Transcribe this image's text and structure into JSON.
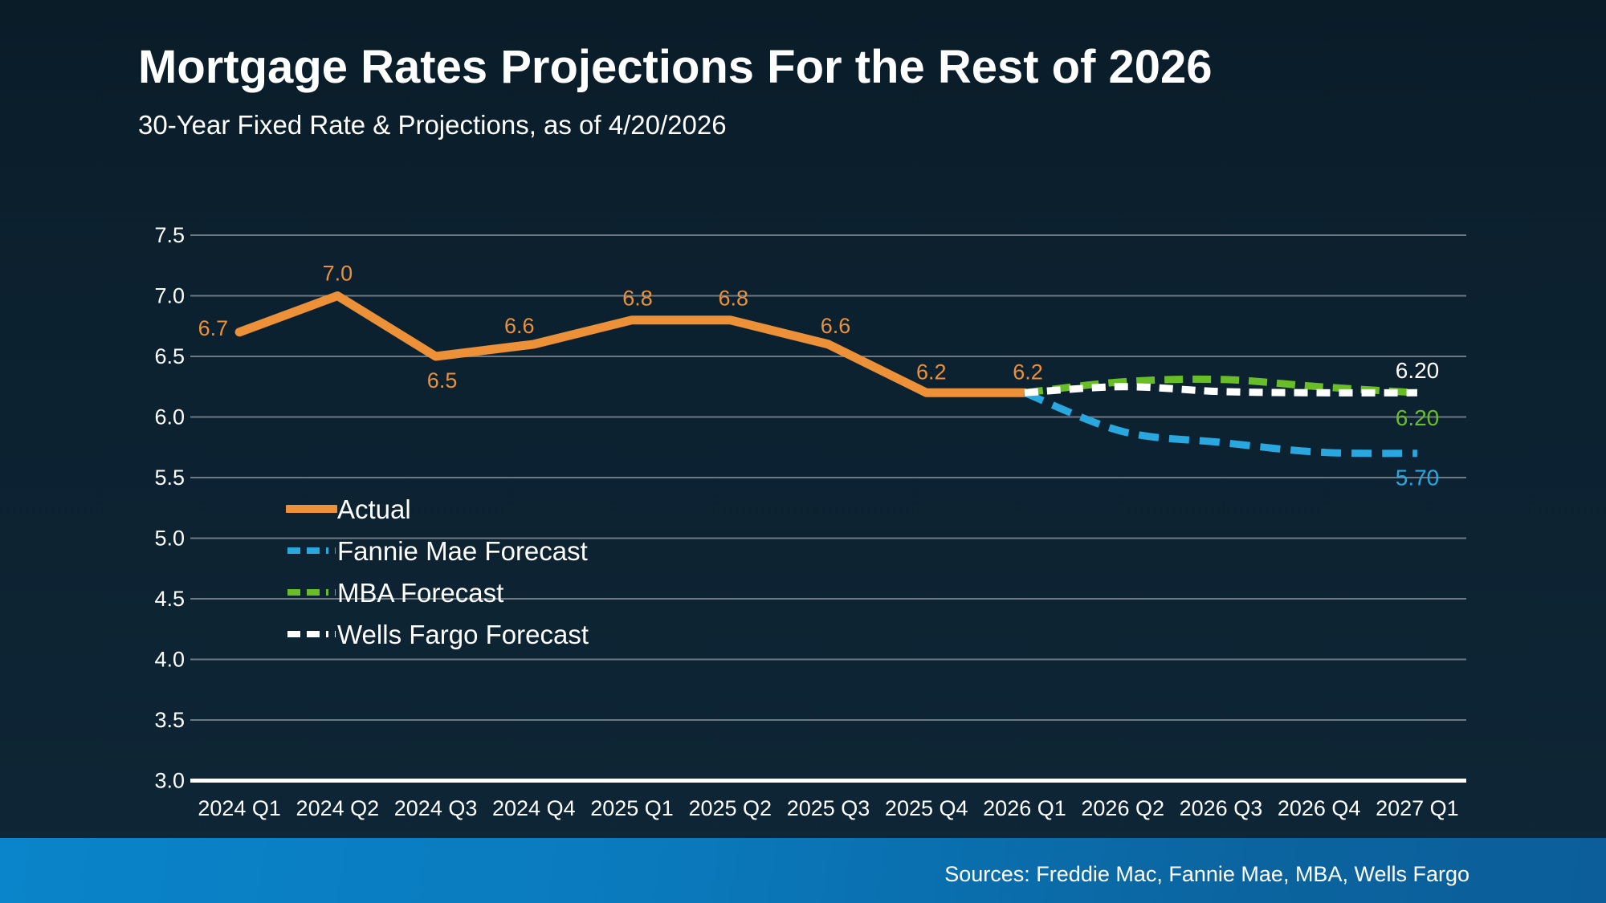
{
  "page": {
    "title": "Mortgage Rates Projections For the Rest of 2026",
    "subtitle": "30-Year Fixed Rate & Projections, as of 4/20/2026",
    "footer": {
      "sources": "Sources: Freddie Mac, Fannie Mae, MBA, Wells Fargo"
    }
  },
  "colors": {
    "background": "#0C2130",
    "text": "#FFFFFF",
    "gridline": "#6E7881",
    "axis_line": "#FFFFFF",
    "actual_orange": "#EC9138",
    "fannie_blue": "#29A8E0",
    "mba_green": "#69BE28",
    "wells_white": "#FFFFFF",
    "footer_blue_left": "#0A84CA",
    "footer_blue_right": "#0B5E9A"
  },
  "chart_data": {
    "type": "line",
    "title": "Mortgage Rates Projections For the Rest of 2026",
    "subtitle": "30-Year Fixed Rate & Projections, as of 4/20/2026",
    "categories": [
      "2024 Q1",
      "2024 Q2",
      "2024 Q3",
      "2024 Q4",
      "2025 Q1",
      "2025 Q2",
      "2025 Q3",
      "2025 Q4",
      "2026 Q1",
      "2026 Q2",
      "2026 Q3",
      "2026 Q4",
      "2027 Q1"
    ],
    "ylim": [
      3.0,
      7.5
    ],
    "ytick_step": 0.5,
    "yticks": [
      7.5,
      7.0,
      6.5,
      6.0,
      5.5,
      5.0,
      4.5,
      4.0,
      3.5,
      3.0
    ],
    "grid": true,
    "legend_position": "inside-left",
    "series": [
      {
        "name": "Actual",
        "line_style": "solid",
        "color": "#EC9138",
        "start_index": 0,
        "values": [
          6.7,
          7.0,
          6.5,
          6.6,
          6.8,
          6.8,
          6.6,
          6.2,
          6.2
        ],
        "point_labels": [
          "6.7",
          "7.0",
          "6.5",
          "6.6",
          "6.8",
          "6.8",
          "6.6",
          "6.2",
          "6.2"
        ]
      },
      {
        "name": "Fannie Mae Forecast",
        "line_style": "dashed",
        "color": "#29A8E0",
        "start_index": 8,
        "values": [
          6.2,
          5.88,
          5.79,
          5.71,
          5.7
        ],
        "end_label": "5.70"
      },
      {
        "name": "MBA Forecast",
        "line_style": "dashed",
        "color": "#69BE28",
        "start_index": 8,
        "values": [
          6.2,
          6.29,
          6.31,
          6.25,
          6.2
        ],
        "end_label": "6.20"
      },
      {
        "name": "Wells Fargo Forecast",
        "line_style": "dashed",
        "color": "#FFFFFF",
        "start_index": 8,
        "values": [
          6.2,
          6.25,
          6.21,
          6.2,
          6.2
        ],
        "end_label": "6.20"
      }
    ]
  }
}
